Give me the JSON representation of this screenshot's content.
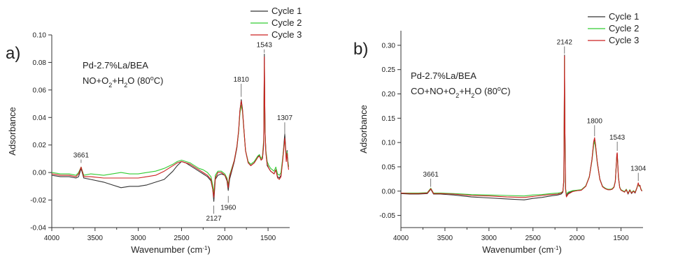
{
  "chart_data": [
    {
      "type": "line",
      "panel_label": "a)",
      "sample": "Pd-2.7%La/BEA",
      "condition": {
        "prefix": "NO+O",
        "sub1": "2",
        "mid": "+H",
        "sub2": "2",
        "suffix": "O (80",
        "sup": "o",
        "tail": "C)"
      },
      "xlabel": "Wavenumber (cm",
      "xlabel_sup": "-1",
      "xlabel_tail": ")",
      "ylabel": "Adsorbance",
      "xlim": [
        4000,
        1250
      ],
      "ylim": [
        -0.04,
        0.1
      ],
      "xticks": [
        4000,
        3500,
        3000,
        2500,
        2000,
        1500
      ],
      "yticks": [
        -0.04,
        -0.02,
        0.0,
        0.02,
        0.04,
        0.06,
        0.08,
        0.1
      ],
      "ytick_labels": [
        "-0.04",
        "-0.02",
        "0.00",
        "0.02",
        "0.04",
        "0.06",
        "0.08",
        "0.10"
      ],
      "legend": [
        "Cycle 1",
        "Cycle 2",
        "Cycle 3"
      ],
      "legend_position": "top-right",
      "colors": [
        "#333333",
        "#33cc33",
        "#cc2222"
      ],
      "annotations": [
        {
          "label": "3661",
          "x": 3661,
          "y": 0.006,
          "text_y": 0.011
        },
        {
          "label": "1810",
          "x": 1810,
          "y": 0.054,
          "text_y": 0.066
        },
        {
          "label": "1543",
          "x": 1543,
          "y": 0.086,
          "text_y": 0.091
        },
        {
          "label": "1307",
          "x": 1307,
          "y": 0.026,
          "text_y": 0.038
        },
        {
          "label": "2127",
          "x": 2127,
          "y": -0.023,
          "text_y": -0.035
        },
        {
          "label": "1960",
          "x": 1960,
          "y": -0.016,
          "text_y": -0.027
        }
      ],
      "series": [
        {
          "name": "Cycle 1",
          "x": [
            4000,
            3900,
            3800,
            3720,
            3690,
            3661,
            3630,
            3550,
            3400,
            3300,
            3200,
            3100,
            3000,
            2900,
            2800,
            2700,
            2600,
            2550,
            2500,
            2450,
            2400,
            2350,
            2300,
            2250,
            2200,
            2160,
            2140,
            2127,
            2110,
            2080,
            2040,
            2000,
            1975,
            1960,
            1945,
            1920,
            1890,
            1860,
            1840,
            1825,
            1810,
            1795,
            1780,
            1760,
            1730,
            1700,
            1680,
            1660,
            1640,
            1620,
            1600,
            1580,
            1565,
            1550,
            1543,
            1535,
            1525,
            1510,
            1490,
            1470,
            1450,
            1430,
            1410,
            1390,
            1370,
            1350,
            1330,
            1315,
            1307,
            1300,
            1290,
            1280,
            1270,
            1262
          ],
          "y": [
            -0.002,
            -0.003,
            -0.003,
            -0.004,
            -0.003,
            0.003,
            -0.004,
            -0.005,
            -0.007,
            -0.009,
            -0.011,
            -0.01,
            -0.01,
            -0.009,
            -0.007,
            -0.005,
            0.001,
            0.005,
            0.008,
            0.007,
            0.005,
            0.003,
            0.001,
            -0.001,
            -0.003,
            -0.006,
            -0.012,
            -0.021,
            -0.005,
            -0.002,
            -0.001,
            -0.002,
            -0.006,
            -0.013,
            -0.005,
            0.001,
            0.008,
            0.018,
            0.03,
            0.045,
            0.053,
            0.046,
            0.032,
            0.016,
            0.007,
            0.005,
            0.006,
            0.007,
            0.009,
            0.011,
            0.013,
            0.009,
            0.01,
            0.02,
            0.086,
            0.03,
            0.015,
            0.005,
            0.003,
            0.001,
            0.0,
            -0.001,
            0.002,
            -0.003,
            -0.004,
            -0.002,
            0.01,
            0.022,
            0.028,
            0.022,
            0.01,
            0.016,
            0.008,
            0.004
          ]
        },
        {
          "name": "Cycle 2",
          "x": [
            4000,
            3900,
            3800,
            3720,
            3690,
            3661,
            3630,
            3550,
            3400,
            3300,
            3200,
            3100,
            3000,
            2900,
            2800,
            2700,
            2600,
            2550,
            2500,
            2450,
            2400,
            2350,
            2300,
            2250,
            2200,
            2160,
            2140,
            2127,
            2110,
            2080,
            2040,
            2000,
            1975,
            1960,
            1945,
            1920,
            1890,
            1860,
            1840,
            1825,
            1810,
            1795,
            1780,
            1760,
            1730,
            1700,
            1680,
            1660,
            1640,
            1620,
            1600,
            1580,
            1565,
            1550,
            1543,
            1535,
            1525,
            1510,
            1490,
            1470,
            1450,
            1430,
            1410,
            1390,
            1370,
            1350,
            1330,
            1315,
            1307,
            1300,
            1290,
            1280,
            1270,
            1262
          ],
          "y": [
            0.0,
            -0.001,
            -0.001,
            -0.002,
            0.0,
            0.004,
            -0.002,
            -0.001,
            -0.002,
            -0.001,
            0.0,
            -0.001,
            -0.001,
            0.0,
            0.001,
            0.003,
            0.006,
            0.008,
            0.009,
            0.008,
            0.007,
            0.005,
            0.003,
            0.002,
            0.0,
            -0.003,
            -0.009,
            -0.015,
            -0.002,
            0.001,
            0.001,
            -0.001,
            -0.004,
            -0.009,
            -0.002,
            0.003,
            0.009,
            0.019,
            0.03,
            0.043,
            0.049,
            0.044,
            0.031,
            0.016,
            0.008,
            0.006,
            0.007,
            0.008,
            0.01,
            0.012,
            0.013,
            0.01,
            0.012,
            0.024,
            0.078,
            0.03,
            0.016,
            0.008,
            0.005,
            0.003,
            0.002,
            0.001,
            0.004,
            -0.001,
            -0.002,
            0.0,
            0.011,
            0.02,
            0.024,
            0.02,
            0.01,
            0.015,
            0.008,
            0.004
          ]
        },
        {
          "name": "Cycle 3",
          "x": [
            4000,
            3900,
            3800,
            3720,
            3690,
            3661,
            3630,
            3550,
            3400,
            3300,
            3200,
            3100,
            3000,
            2900,
            2800,
            2700,
            2600,
            2550,
            2500,
            2450,
            2400,
            2350,
            2300,
            2250,
            2200,
            2160,
            2140,
            2127,
            2110,
            2080,
            2040,
            2000,
            1975,
            1960,
            1945,
            1920,
            1890,
            1860,
            1840,
            1825,
            1810,
            1795,
            1780,
            1760,
            1730,
            1700,
            1680,
            1660,
            1640,
            1620,
            1600,
            1580,
            1565,
            1550,
            1543,
            1535,
            1525,
            1510,
            1490,
            1470,
            1450,
            1430,
            1410,
            1390,
            1370,
            1350,
            1330,
            1315,
            1307,
            1300,
            1290,
            1280,
            1270,
            1262
          ],
          "y": [
            -0.001,
            -0.002,
            -0.002,
            -0.003,
            -0.001,
            0.004,
            -0.003,
            -0.003,
            -0.004,
            -0.004,
            -0.004,
            -0.004,
            -0.004,
            -0.003,
            -0.002,
            0.001,
            0.005,
            0.007,
            0.008,
            0.007,
            0.006,
            0.004,
            0.002,
            0.0,
            -0.002,
            -0.005,
            -0.012,
            -0.018,
            -0.004,
            0.0,
            0.0,
            -0.002,
            -0.005,
            -0.011,
            -0.003,
            0.002,
            0.009,
            0.019,
            0.031,
            0.045,
            0.052,
            0.045,
            0.032,
            0.016,
            0.007,
            0.005,
            0.006,
            0.007,
            0.009,
            0.011,
            0.012,
            0.009,
            0.01,
            0.022,
            0.084,
            0.03,
            0.014,
            0.006,
            0.003,
            0.001,
            0.0,
            -0.001,
            0.002,
            -0.004,
            -0.005,
            -0.003,
            0.009,
            0.019,
            0.025,
            0.02,
            0.008,
            0.014,
            0.006,
            0.002
          ]
        }
      ]
    },
    {
      "type": "line",
      "panel_label": "b)",
      "sample": "Pd-2.7%La/BEA",
      "condition": {
        "prefix": "CO+NO+O",
        "sub1": "2",
        "mid": "+H",
        "sub2": "2",
        "suffix": "O (80",
        "sup": "o",
        "tail": "C)"
      },
      "xlabel": "Wavenumber (cm",
      "xlabel_sup": "-1",
      "xlabel_tail": ")",
      "ylabel": "Adsorbance",
      "xlim": [
        4000,
        1250
      ],
      "ylim": [
        -0.075,
        0.33
      ],
      "xticks": [
        4000,
        3500,
        3000,
        2500,
        2000,
        1500
      ],
      "yticks": [
        -0.05,
        0.0,
        0.05,
        0.1,
        0.15,
        0.2,
        0.25,
        0.3
      ],
      "ytick_labels": [
        "-0.05",
        "0.00",
        "0.05",
        "0.10",
        "0.15",
        "0.20",
        "0.25",
        "0.30"
      ],
      "legend": [
        "Cycle 1",
        "Cycle 2",
        "Cycle 3"
      ],
      "legend_position": "top-right",
      "colors": [
        "#333333",
        "#33cc33",
        "#cc2222"
      ],
      "annotations": [
        {
          "label": "3661",
          "x": 3661,
          "y": 0.006,
          "text_y": 0.03
        },
        {
          "label": "2142",
          "x": 2142,
          "y": 0.28,
          "text_y": 0.302
        },
        {
          "label": "1800",
          "x": 1800,
          "y": 0.11,
          "text_y": 0.14
        },
        {
          "label": "1543",
          "x": 1543,
          "y": 0.08,
          "text_y": 0.106
        },
        {
          "label": "1304",
          "x": 1304,
          "y": 0.018,
          "text_y": 0.042
        }
      ],
      "series": [
        {
          "name": "Cycle 1",
          "x": [
            4000,
            3900,
            3800,
            3700,
            3661,
            3630,
            3550,
            3400,
            3200,
            3000,
            2800,
            2600,
            2500,
            2400,
            2300,
            2220,
            2180,
            2160,
            2150,
            2145,
            2142,
            2138,
            2130,
            2120,
            2100,
            2050,
            2000,
            1950,
            1900,
            1860,
            1830,
            1810,
            1800,
            1790,
            1770,
            1740,
            1710,
            1680,
            1650,
            1620,
            1600,
            1580,
            1565,
            1555,
            1547,
            1543,
            1538,
            1530,
            1515,
            1500,
            1480,
            1460,
            1440,
            1420,
            1400,
            1380,
            1360,
            1340,
            1320,
            1304,
            1295,
            1285,
            1275,
            1262
          ],
          "y": [
            -0.005,
            -0.006,
            -0.006,
            -0.005,
            0.004,
            -0.006,
            -0.006,
            -0.008,
            -0.012,
            -0.014,
            -0.016,
            -0.018,
            -0.015,
            -0.013,
            -0.01,
            -0.008,
            -0.006,
            -0.002,
            0.02,
            0.15,
            0.28,
            0.14,
            0.005,
            -0.01,
            -0.004,
            0.0,
            0.001,
            0.002,
            0.01,
            0.03,
            0.065,
            0.1,
            0.108,
            0.095,
            0.06,
            0.025,
            0.01,
            0.006,
            0.003,
            0.003,
            0.004,
            0.008,
            0.02,
            0.05,
            0.075,
            0.078,
            0.06,
            0.03,
            0.008,
            0.002,
            0.0,
            -0.002,
            0.003,
            -0.006,
            0.002,
            -0.005,
            0.0,
            -0.004,
            0.006,
            0.016,
            0.01,
            0.012,
            0.004,
            0.0
          ]
        },
        {
          "name": "Cycle 2",
          "x": [
            4000,
            3900,
            3800,
            3700,
            3661,
            3630,
            3550,
            3400,
            3200,
            3000,
            2800,
            2600,
            2500,
            2400,
            2300,
            2220,
            2180,
            2160,
            2150,
            2145,
            2142,
            2138,
            2130,
            2120,
            2100,
            2050,
            2000,
            1950,
            1900,
            1860,
            1830,
            1810,
            1800,
            1790,
            1770,
            1740,
            1710,
            1680,
            1650,
            1620,
            1600,
            1580,
            1565,
            1555,
            1547,
            1543,
            1538,
            1530,
            1515,
            1500,
            1480,
            1460,
            1440,
            1420,
            1400,
            1380,
            1360,
            1340,
            1320,
            1304,
            1295,
            1285,
            1275,
            1262
          ],
          "y": [
            -0.004,
            -0.004,
            -0.004,
            -0.003,
            0.006,
            -0.004,
            -0.004,
            -0.005,
            -0.007,
            -0.008,
            -0.009,
            -0.01,
            -0.008,
            -0.007,
            -0.005,
            -0.004,
            -0.003,
            0.0,
            0.022,
            0.15,
            0.272,
            0.135,
            0.006,
            -0.006,
            -0.002,
            0.001,
            0.002,
            0.003,
            0.011,
            0.03,
            0.062,
            0.095,
            0.102,
            0.09,
            0.058,
            0.024,
            0.01,
            0.006,
            0.004,
            0.004,
            0.005,
            0.009,
            0.021,
            0.05,
            0.072,
            0.074,
            0.058,
            0.028,
            0.008,
            0.003,
            0.001,
            -0.001,
            0.004,
            -0.004,
            0.003,
            -0.003,
            0.001,
            -0.002,
            0.007,
            0.015,
            0.01,
            0.011,
            0.005,
            0.001
          ]
        },
        {
          "name": "Cycle 3",
          "x": [
            4000,
            3900,
            3800,
            3700,
            3661,
            3630,
            3550,
            3400,
            3200,
            3000,
            2800,
            2600,
            2500,
            2400,
            2300,
            2220,
            2180,
            2160,
            2150,
            2145,
            2142,
            2138,
            2130,
            2120,
            2100,
            2050,
            2000,
            1950,
            1900,
            1860,
            1830,
            1810,
            1800,
            1790,
            1770,
            1740,
            1710,
            1680,
            1650,
            1620,
            1600,
            1580,
            1565,
            1555,
            1547,
            1543,
            1538,
            1530,
            1515,
            1500,
            1480,
            1460,
            1440,
            1420,
            1400,
            1380,
            1360,
            1340,
            1320,
            1304,
            1295,
            1285,
            1275,
            1262
          ],
          "y": [
            -0.004,
            -0.005,
            -0.005,
            -0.004,
            0.005,
            -0.005,
            -0.005,
            -0.006,
            -0.009,
            -0.01,
            -0.012,
            -0.013,
            -0.011,
            -0.009,
            -0.007,
            -0.006,
            -0.004,
            -0.001,
            0.024,
            0.16,
            0.278,
            0.14,
            0.004,
            -0.012,
            -0.006,
            -0.001,
            0.001,
            0.002,
            0.01,
            0.029,
            0.064,
            0.102,
            0.11,
            0.096,
            0.06,
            0.024,
            0.009,
            0.005,
            0.003,
            0.003,
            0.004,
            0.008,
            0.02,
            0.048,
            0.076,
            0.079,
            0.06,
            0.029,
            0.007,
            0.002,
            0.0,
            -0.002,
            0.003,
            -0.005,
            0.002,
            -0.004,
            0.0,
            -0.003,
            0.006,
            0.017,
            0.011,
            0.012,
            0.004,
            0.0
          ]
        }
      ]
    }
  ]
}
